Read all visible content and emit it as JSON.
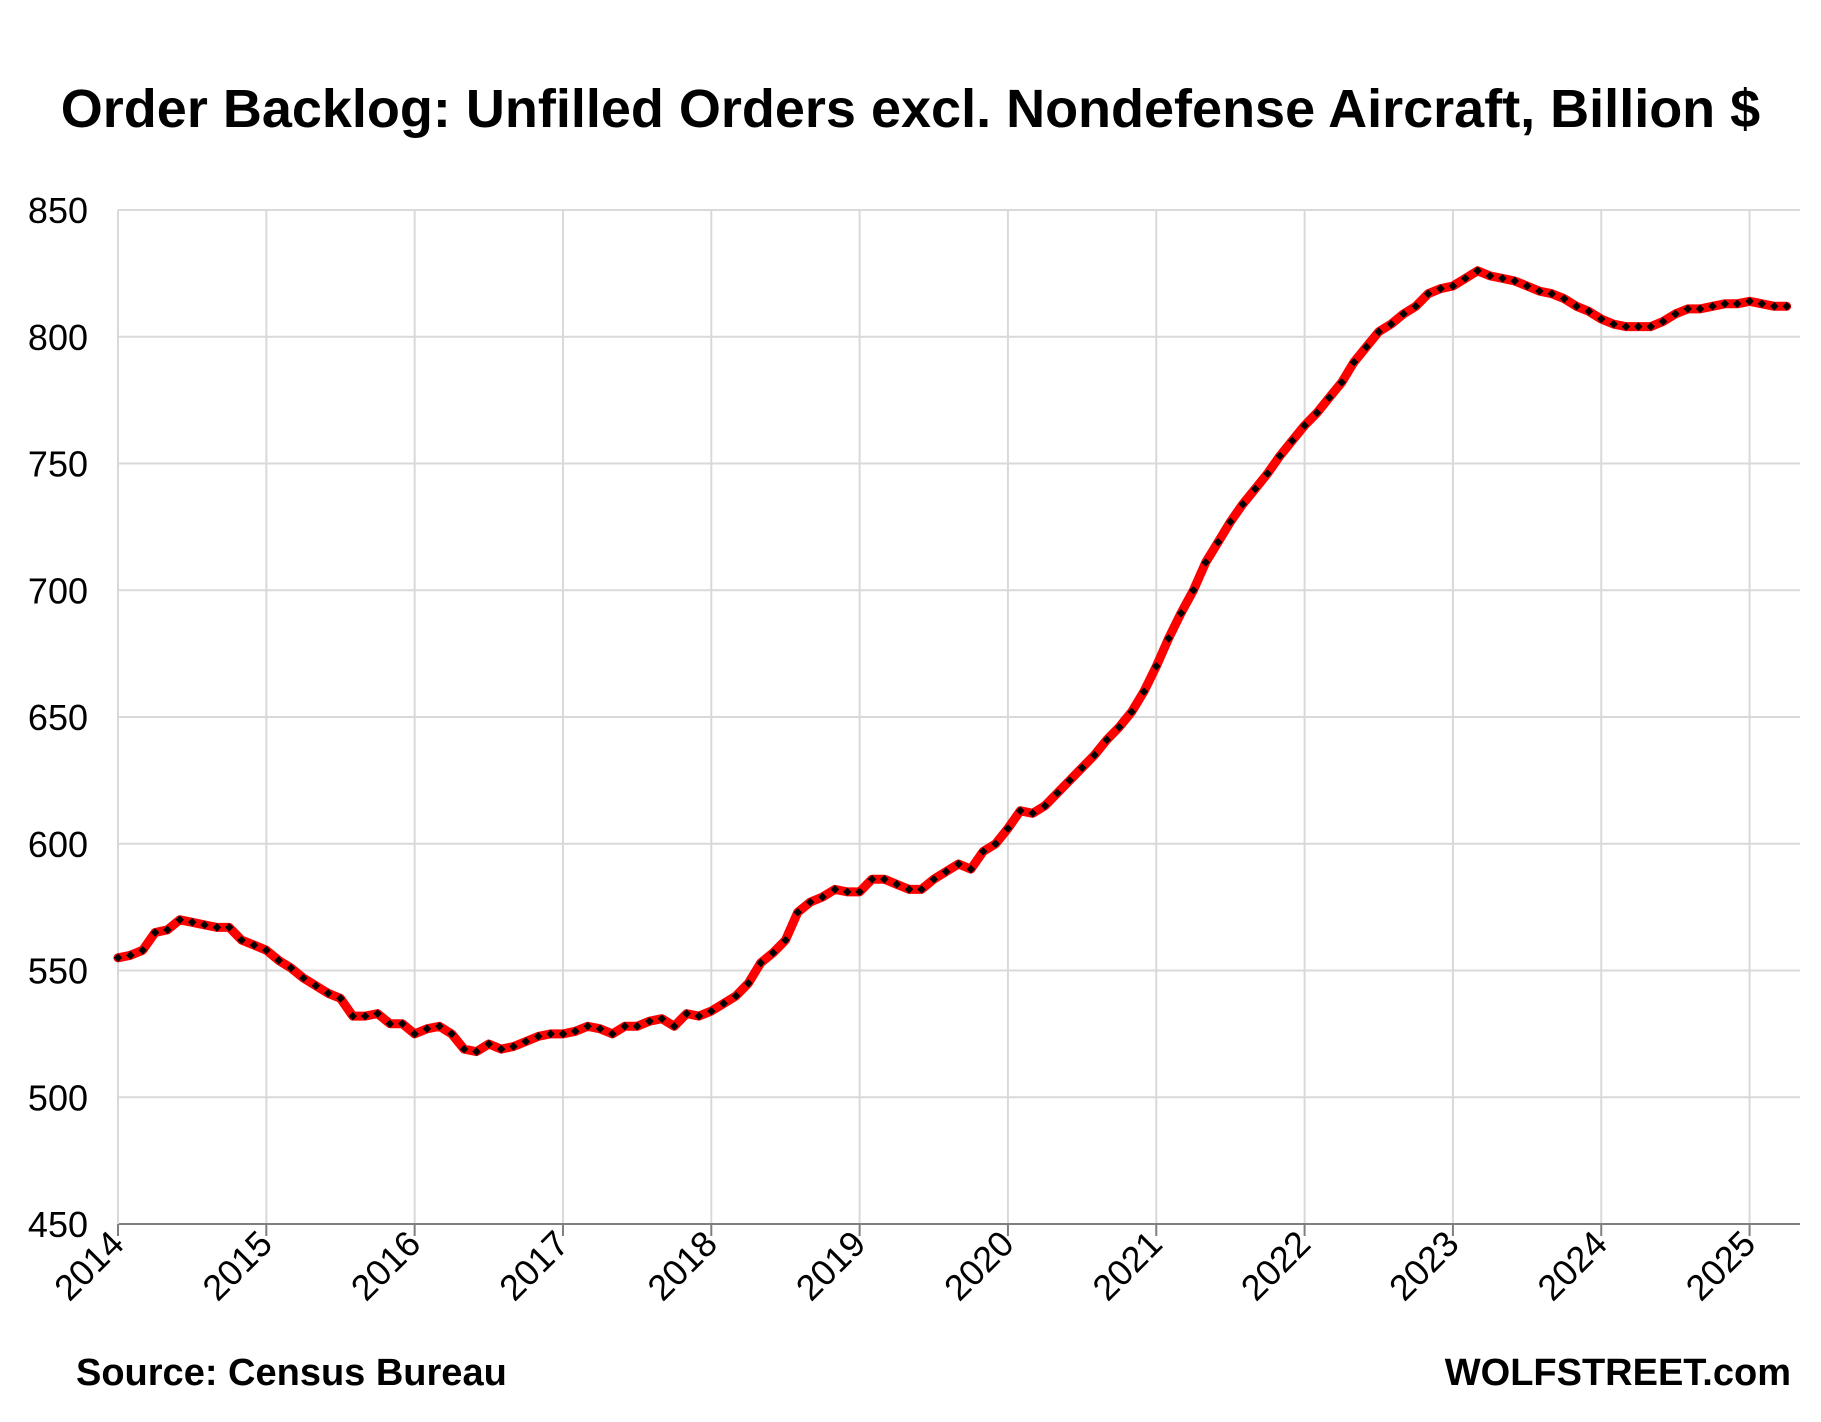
{
  "chart_data": {
    "type": "line",
    "title": "Order Backlog: Unfilled Orders excl. Nondefense Aircraft, Billion $",
    "xlabel": "",
    "ylabel": "",
    "ylim": [
      450,
      850
    ],
    "xlim": [
      2014.0,
      2025.34
    ],
    "y_ticks": [
      450,
      500,
      550,
      600,
      650,
      700,
      750,
      800,
      850
    ],
    "x_ticks": [
      "2014",
      "2015",
      "2016",
      "2017",
      "2018",
      "2019",
      "2020",
      "2021",
      "2022",
      "2023",
      "2024",
      "2025"
    ],
    "grid": true,
    "legend": "none",
    "x_frequency": "monthly",
    "x_start": "2014-01",
    "series": [
      {
        "color": "#ff0000",
        "marker_color": "#000000",
        "values": [
          555,
          556,
          558,
          565,
          566,
          570,
          569,
          568,
          567,
          567,
          562,
          560,
          558,
          554,
          551,
          547,
          544,
          541,
          539,
          532,
          532,
          533,
          529,
          529,
          525,
          527,
          528,
          525,
          519,
          518,
          521,
          519,
          520,
          522,
          524,
          525,
          525,
          526,
          528,
          527,
          525,
          528,
          528,
          530,
          531,
          528,
          533,
          532,
          534,
          537,
          540,
          545,
          553,
          557,
          562,
          573,
          577,
          579,
          582,
          581,
          581,
          586,
          586,
          584,
          582,
          582,
          586,
          589,
          592,
          590,
          597,
          600,
          606,
          613,
          612,
          615,
          620,
          625,
          630,
          635,
          641,
          646,
          652,
          660,
          670,
          681,
          691,
          700,
          711,
          719,
          727,
          734,
          740,
          746,
          753,
          759,
          765,
          770,
          776,
          782,
          790,
          796,
          802,
          805,
          809,
          812,
          817,
          819,
          820,
          823,
          826,
          824,
          823,
          822,
          820,
          818,
          817,
          815,
          812,
          810,
          807,
          805,
          804,
          804,
          804,
          806,
          809,
          811,
          811,
          812,
          813,
          813,
          814,
          813,
          812,
          812
        ]
      }
    ]
  },
  "footer": {
    "source": "Source: Census Bureau",
    "brand": "WOLFSTREET.com"
  }
}
